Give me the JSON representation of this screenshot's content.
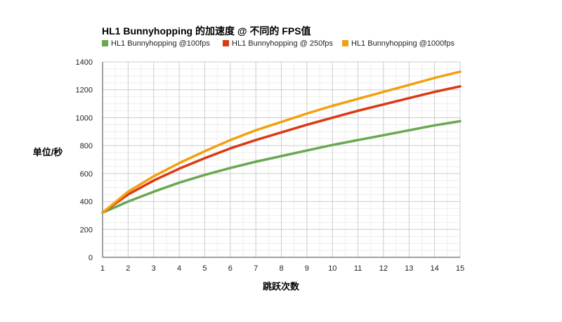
{
  "chart_data": {
    "type": "line",
    "title": "HL1 Bunnyhopping 的加速度 @ 不同的 FPS值",
    "xlabel": "跳跃次数",
    "ylabel": "单位/秒",
    "x": [
      1,
      2,
      3,
      4,
      5,
      6,
      7,
      8,
      9,
      10,
      11,
      12,
      13,
      14,
      15
    ],
    "xlim": [
      1,
      15
    ],
    "ylim": [
      0,
      1400
    ],
    "yticks": [
      0,
      200,
      400,
      600,
      800,
      1000,
      1200,
      1400
    ],
    "grid": true,
    "legend_position": "top-left",
    "series": [
      {
        "name": "HL1 Bunnyhopping @100fps",
        "color": "#6aa84f",
        "values": [
          320,
          400,
          470,
          535,
          590,
          640,
          685,
          725,
          765,
          805,
          840,
          875,
          910,
          945,
          975
        ]
      },
      {
        "name": "HL1 Bunnyhopping @ 250fps",
        "color": "#dc3912",
        "values": [
          320,
          450,
          550,
          635,
          710,
          780,
          840,
          895,
          950,
          1000,
          1050,
          1095,
          1140,
          1185,
          1225
        ]
      },
      {
        "name": "HL1 Bunnyhopping @1000fps",
        "color": "#f1a010",
        "values": [
          320,
          470,
          580,
          675,
          760,
          840,
          910,
          970,
          1030,
          1085,
          1135,
          1185,
          1235,
          1285,
          1330
        ]
      }
    ]
  }
}
